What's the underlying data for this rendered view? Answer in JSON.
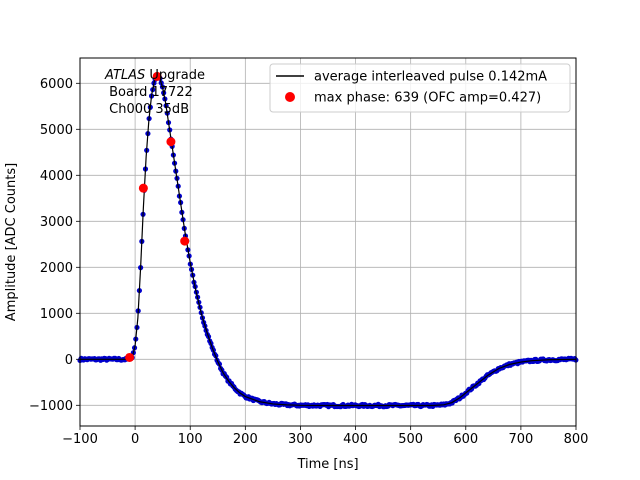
{
  "chart_data": {
    "type": "scatter",
    "xlabel": "Time [ns]",
    "ylabel": "Amplitude [ADC Counts]",
    "xlim": [
      -100,
      800
    ],
    "ylim": [
      -1450,
      6550
    ],
    "xticks": [
      -100,
      0,
      100,
      200,
      300,
      400,
      500,
      600,
      700,
      800
    ],
    "yticks": [
      -1000,
      0,
      1000,
      2000,
      3000,
      4000,
      5000,
      6000
    ],
    "xtick_labels": [
      "−100",
      "0",
      "100",
      "200",
      "300",
      "400",
      "500",
      "600",
      "700",
      "800"
    ],
    "ytick_labels": [
      "−1000",
      "0",
      "1000",
      "2000",
      "3000",
      "4000",
      "5000",
      "6000"
    ],
    "grid": true,
    "legend_placement": "top-right",
    "annotation": {
      "line1_italic": "ATLAS",
      "line1_rest": " Upgrade",
      "line2": " Board 17722",
      "line3": " Ch000 35dB"
    },
    "series": [
      {
        "name": "average interleaved pulse 0.142mA",
        "kind": "line",
        "color": "#000000",
        "points": [
          [
            -100,
            0
          ],
          [
            -50,
            0
          ],
          [
            -15,
            0
          ],
          [
            -5,
            50
          ],
          [
            0,
            300
          ],
          [
            5,
            900
          ],
          [
            10,
            2000
          ],
          [
            15,
            3300
          ],
          [
            20,
            4400
          ],
          [
            25,
            5200
          ],
          [
            30,
            5750
          ],
          [
            35,
            6050
          ],
          [
            40,
            6150
          ],
          [
            45,
            6100
          ],
          [
            50,
            5900
          ],
          [
            55,
            5600
          ],
          [
            60,
            5200
          ],
          [
            65,
            4800
          ],
          [
            70,
            4400
          ],
          [
            75,
            4000
          ],
          [
            80,
            3600
          ],
          [
            85,
            3200
          ],
          [
            90,
            2800
          ],
          [
            100,
            2100
          ],
          [
            110,
            1500
          ],
          [
            120,
            1000
          ],
          [
            130,
            600
          ],
          [
            140,
            250
          ],
          [
            150,
            -50
          ],
          [
            160,
            -300
          ],
          [
            170,
            -480
          ],
          [
            180,
            -620
          ],
          [
            190,
            -730
          ],
          [
            200,
            -810
          ],
          [
            225,
            -920
          ],
          [
            250,
            -970
          ],
          [
            275,
            -990
          ],
          [
            300,
            -1000
          ],
          [
            350,
            -1005
          ],
          [
            400,
            -1005
          ],
          [
            450,
            -1005
          ],
          [
            500,
            -1005
          ],
          [
            540,
            -1005
          ],
          [
            560,
            -990
          ],
          [
            575,
            -940
          ],
          [
            590,
            -830
          ],
          [
            600,
            -730
          ],
          [
            620,
            -540
          ],
          [
            640,
            -350
          ],
          [
            660,
            -200
          ],
          [
            680,
            -110
          ],
          [
            700,
            -60
          ],
          [
            720,
            -30
          ],
          [
            750,
            -10
          ],
          [
            800,
            0
          ]
        ]
      },
      {
        "name": "",
        "kind": "markers",
        "color": "#0000cc",
        "note_visible": "dense blue sample dots along the pulse"
      },
      {
        "name": "max phase: 639 (OFC amp=0.427)",
        "kind": "markers",
        "color": "#ff0000",
        "points": [
          [
            -10,
            40
          ],
          [
            15,
            3720
          ],
          [
            40,
            6150
          ],
          [
            65,
            4730
          ],
          [
            90,
            2570
          ]
        ]
      }
    ]
  }
}
